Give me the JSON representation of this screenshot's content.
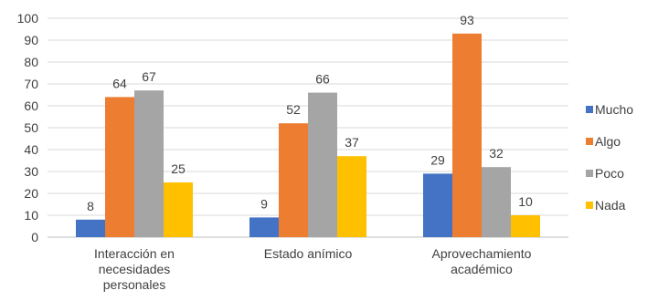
{
  "chart_data": {
    "type": "bar",
    "categories": [
      [
        "Interacción en",
        "necesidades",
        "personales"
      ],
      [
        "Estado anímico"
      ],
      [
        "Aprovechamiento",
        "académico"
      ]
    ],
    "series": [
      {
        "name": "Mucho",
        "color": "#4472c4",
        "values": [
          8,
          9,
          29
        ]
      },
      {
        "name": "Algo",
        "color": "#ed7d31",
        "values": [
          64,
          52,
          93
        ]
      },
      {
        "name": "Poco",
        "color": "#a5a5a5",
        "values": [
          67,
          66,
          32
        ]
      },
      {
        "name": "Nada",
        "color": "#ffc000",
        "values": [
          25,
          37,
          10
        ]
      }
    ],
    "ylim": [
      0,
      100
    ],
    "yticks": [
      0,
      10,
      20,
      30,
      40,
      50,
      60,
      70,
      80,
      90,
      100
    ],
    "grid": true,
    "legend": "right",
    "data_labels": true
  }
}
